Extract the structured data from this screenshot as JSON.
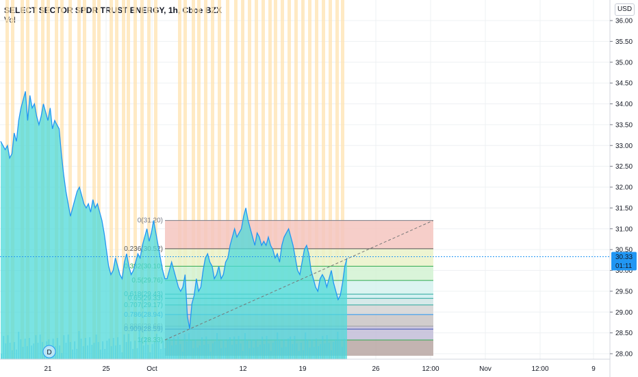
{
  "header": {
    "title": "SELECT SECTOR SPDR TRUST ENERGY, 1h, Cboe BZX",
    "volume_label": "Vol",
    "currency": "USD"
  },
  "price_badge": {
    "price": "30.33",
    "countdown": "01:11",
    "color": "#2196f3"
  },
  "event_marker": {
    "label": "D"
  },
  "colors": {
    "line": "#2196f3",
    "area": "#4dd9d9",
    "session_band": "#ffe3b0",
    "grid": "#eef0f3"
  },
  "chart_data": {
    "type": "area",
    "y_axis": {
      "ticks": [
        "28.00",
        "28.50",
        "29.00",
        "29.50",
        "30.00",
        "30.50",
        "31.00",
        "31.50",
        "32.00",
        "32.50",
        "33.00",
        "33.50",
        "34.00",
        "34.50",
        "35.00",
        "35.50",
        "36.00"
      ],
      "range": [
        27.85,
        36.25
      ]
    },
    "x_axis": {
      "ticks": [
        "21",
        "25",
        "Oct",
        "12",
        "19",
        "26",
        "12:00",
        "Nov",
        "12:00",
        "9"
      ]
    },
    "series": [
      {
        "values": [
          33.1,
          33.0,
          32.9,
          33.0,
          32.7,
          32.8,
          33.3,
          33.1,
          33.6,
          33.9,
          34.1,
          34.3,
          33.6,
          34.2,
          33.9,
          34.0,
          33.7,
          33.5,
          33.7,
          34.0,
          33.8,
          33.6,
          33.9,
          33.4,
          33.6,
          33.5,
          33.4,
          32.8,
          32.3,
          31.9,
          31.6,
          31.3,
          31.5,
          31.7,
          31.9,
          32.0,
          31.8,
          31.6,
          31.5,
          31.6,
          31.4,
          31.7,
          31.5,
          31.6,
          31.4,
          31.2,
          30.9,
          30.5,
          30.1,
          29.9,
          30.0,
          30.3,
          30.1,
          29.9,
          29.8,
          30.2,
          30.4,
          30.1,
          29.9,
          30.0,
          30.2,
          30.4,
          30.3,
          30.6,
          30.8,
          31.0,
          30.7,
          30.9,
          31.2,
          30.9,
          30.6,
          30.3,
          30.0,
          29.8,
          29.8,
          30.0,
          30.2,
          30.0,
          29.8,
          29.6,
          29.5,
          29.6,
          29.9,
          28.9,
          28.6,
          29.2,
          29.4,
          29.8,
          29.5,
          29.6,
          30.0,
          30.3,
          30.4,
          30.2,
          30.1,
          29.8,
          29.9,
          30.1,
          29.8,
          29.9,
          30.2,
          30.3,
          30.6,
          30.8,
          31.0,
          30.8,
          30.9,
          31.0,
          31.3,
          31.5,
          31.2,
          31.0,
          30.8,
          30.6,
          30.9,
          30.8,
          30.6,
          30.7,
          30.6,
          30.8,
          30.6,
          30.5,
          30.3,
          30.4,
          30.2,
          30.6,
          30.8,
          30.9,
          31.0,
          30.8,
          30.6,
          30.3,
          30.0,
          29.9,
          30.2,
          30.5,
          30.6,
          30.4,
          30.0,
          29.8,
          29.6,
          29.5,
          29.8,
          29.9,
          29.8,
          29.6,
          29.8,
          30.0,
          29.7,
          29.5,
          29.3,
          29.4,
          29.7,
          30.1,
          30.3
        ],
        "x_start": 1,
        "x_end": 507
      }
    ],
    "fibonacci": [
      {
        "ratio": "0",
        "value": "31.20",
        "label": "0(31.20)",
        "color": "#787b86",
        "fill": "#f5c6c0"
      },
      {
        "ratio": "0.236",
        "value": "30.52",
        "label": "0.236(30.52)",
        "color": "#555555",
        "fill": "#eaf2c9"
      },
      {
        "ratio": "0.382",
        "value": "30.10",
        "label": "0.382(30.10)",
        "color": "#2fa84f",
        "fill": "#d2f2d2"
      },
      {
        "ratio": "0.5",
        "value": "29.76",
        "label": "0.5(29.76)",
        "color": "#2fa84f",
        "fill": "#d5f2ee"
      },
      {
        "ratio": "0.618",
        "value": "29.43",
        "label": "0.618(29.43)",
        "color": "#26a69a",
        "fill": "#cdeef0"
      },
      {
        "ratio": "0.65",
        "value": "29.33",
        "label": "0.65(29.33)",
        "color": "#26a69a",
        "fill": "#cfe5e5"
      },
      {
        "ratio": "0.707",
        "value": "29.17",
        "label": "0.707(29.17)",
        "color": "#26a69a",
        "fill": "#d3d3d3"
      },
      {
        "ratio": "0.786",
        "value": "28.94",
        "label": "0.786(28.94)",
        "color": "#2196f3",
        "fill": "#c9c4c4"
      },
      {
        "ratio": "0.886",
        "value": "28.66",
        "label": "0.886(28.66)",
        "color": "#9e9e9e",
        "fill": "#c2bdd8"
      },
      {
        "ratio": "0.909",
        "value": "28.59",
        "label": "0.909(28.59)",
        "color": "#3f51b5",
        "fill": "#c2bdd8"
      },
      {
        "ratio": "1",
        "value": "28.33",
        "label": "1(28.33)",
        "color": "#2fa84f",
        "fill": "#b8a7a3"
      }
    ],
    "fib_bottom": 27.95,
    "trend_line": {
      "from": 28.33,
      "to": 31.2
    },
    "current_price": 30.33
  }
}
